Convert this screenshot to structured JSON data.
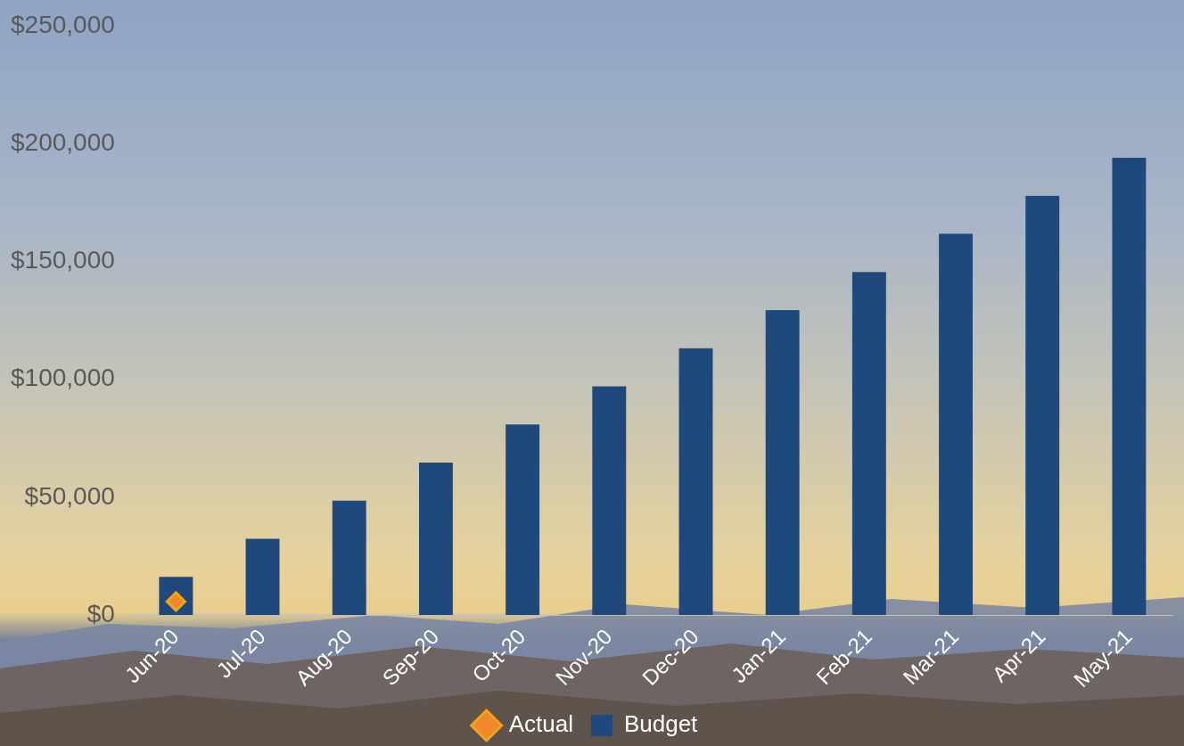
{
  "chart_data": {
    "type": "bar",
    "categories": [
      "Jun-20",
      "Jul-20",
      "Aug-20",
      "Sep-20",
      "Oct-20",
      "Nov-20",
      "Dec-20",
      "Jan-21",
      "Feb-21",
      "Mar-21",
      "Apr-21",
      "May-21"
    ],
    "series": [
      {
        "name": "Budget",
        "color": "#1f487c",
        "values": [
          16200,
          32300,
          48500,
          64700,
          80800,
          97000,
          113200,
          129300,
          145500,
          161700,
          177800,
          194000
        ]
      },
      {
        "name": "Actual",
        "color": "#f0892a",
        "type": "line",
        "marker": "diamond",
        "values": [
          5700,
          null,
          null,
          null,
          null,
          null,
          null,
          null,
          null,
          null,
          null,
          null
        ]
      }
    ],
    "ylim": [
      0,
      250000
    ],
    "yticks": [
      {
        "value": 0,
        "label": "$0"
      },
      {
        "value": 50000,
        "label": "$50,000"
      },
      {
        "value": 100000,
        "label": "$100,000"
      },
      {
        "value": 150000,
        "label": "$150,000"
      },
      {
        "value": 200000,
        "label": "$200,000"
      },
      {
        "value": 250000,
        "label": "$250,000"
      }
    ],
    "grid": false,
    "legend": "bottom"
  }
}
